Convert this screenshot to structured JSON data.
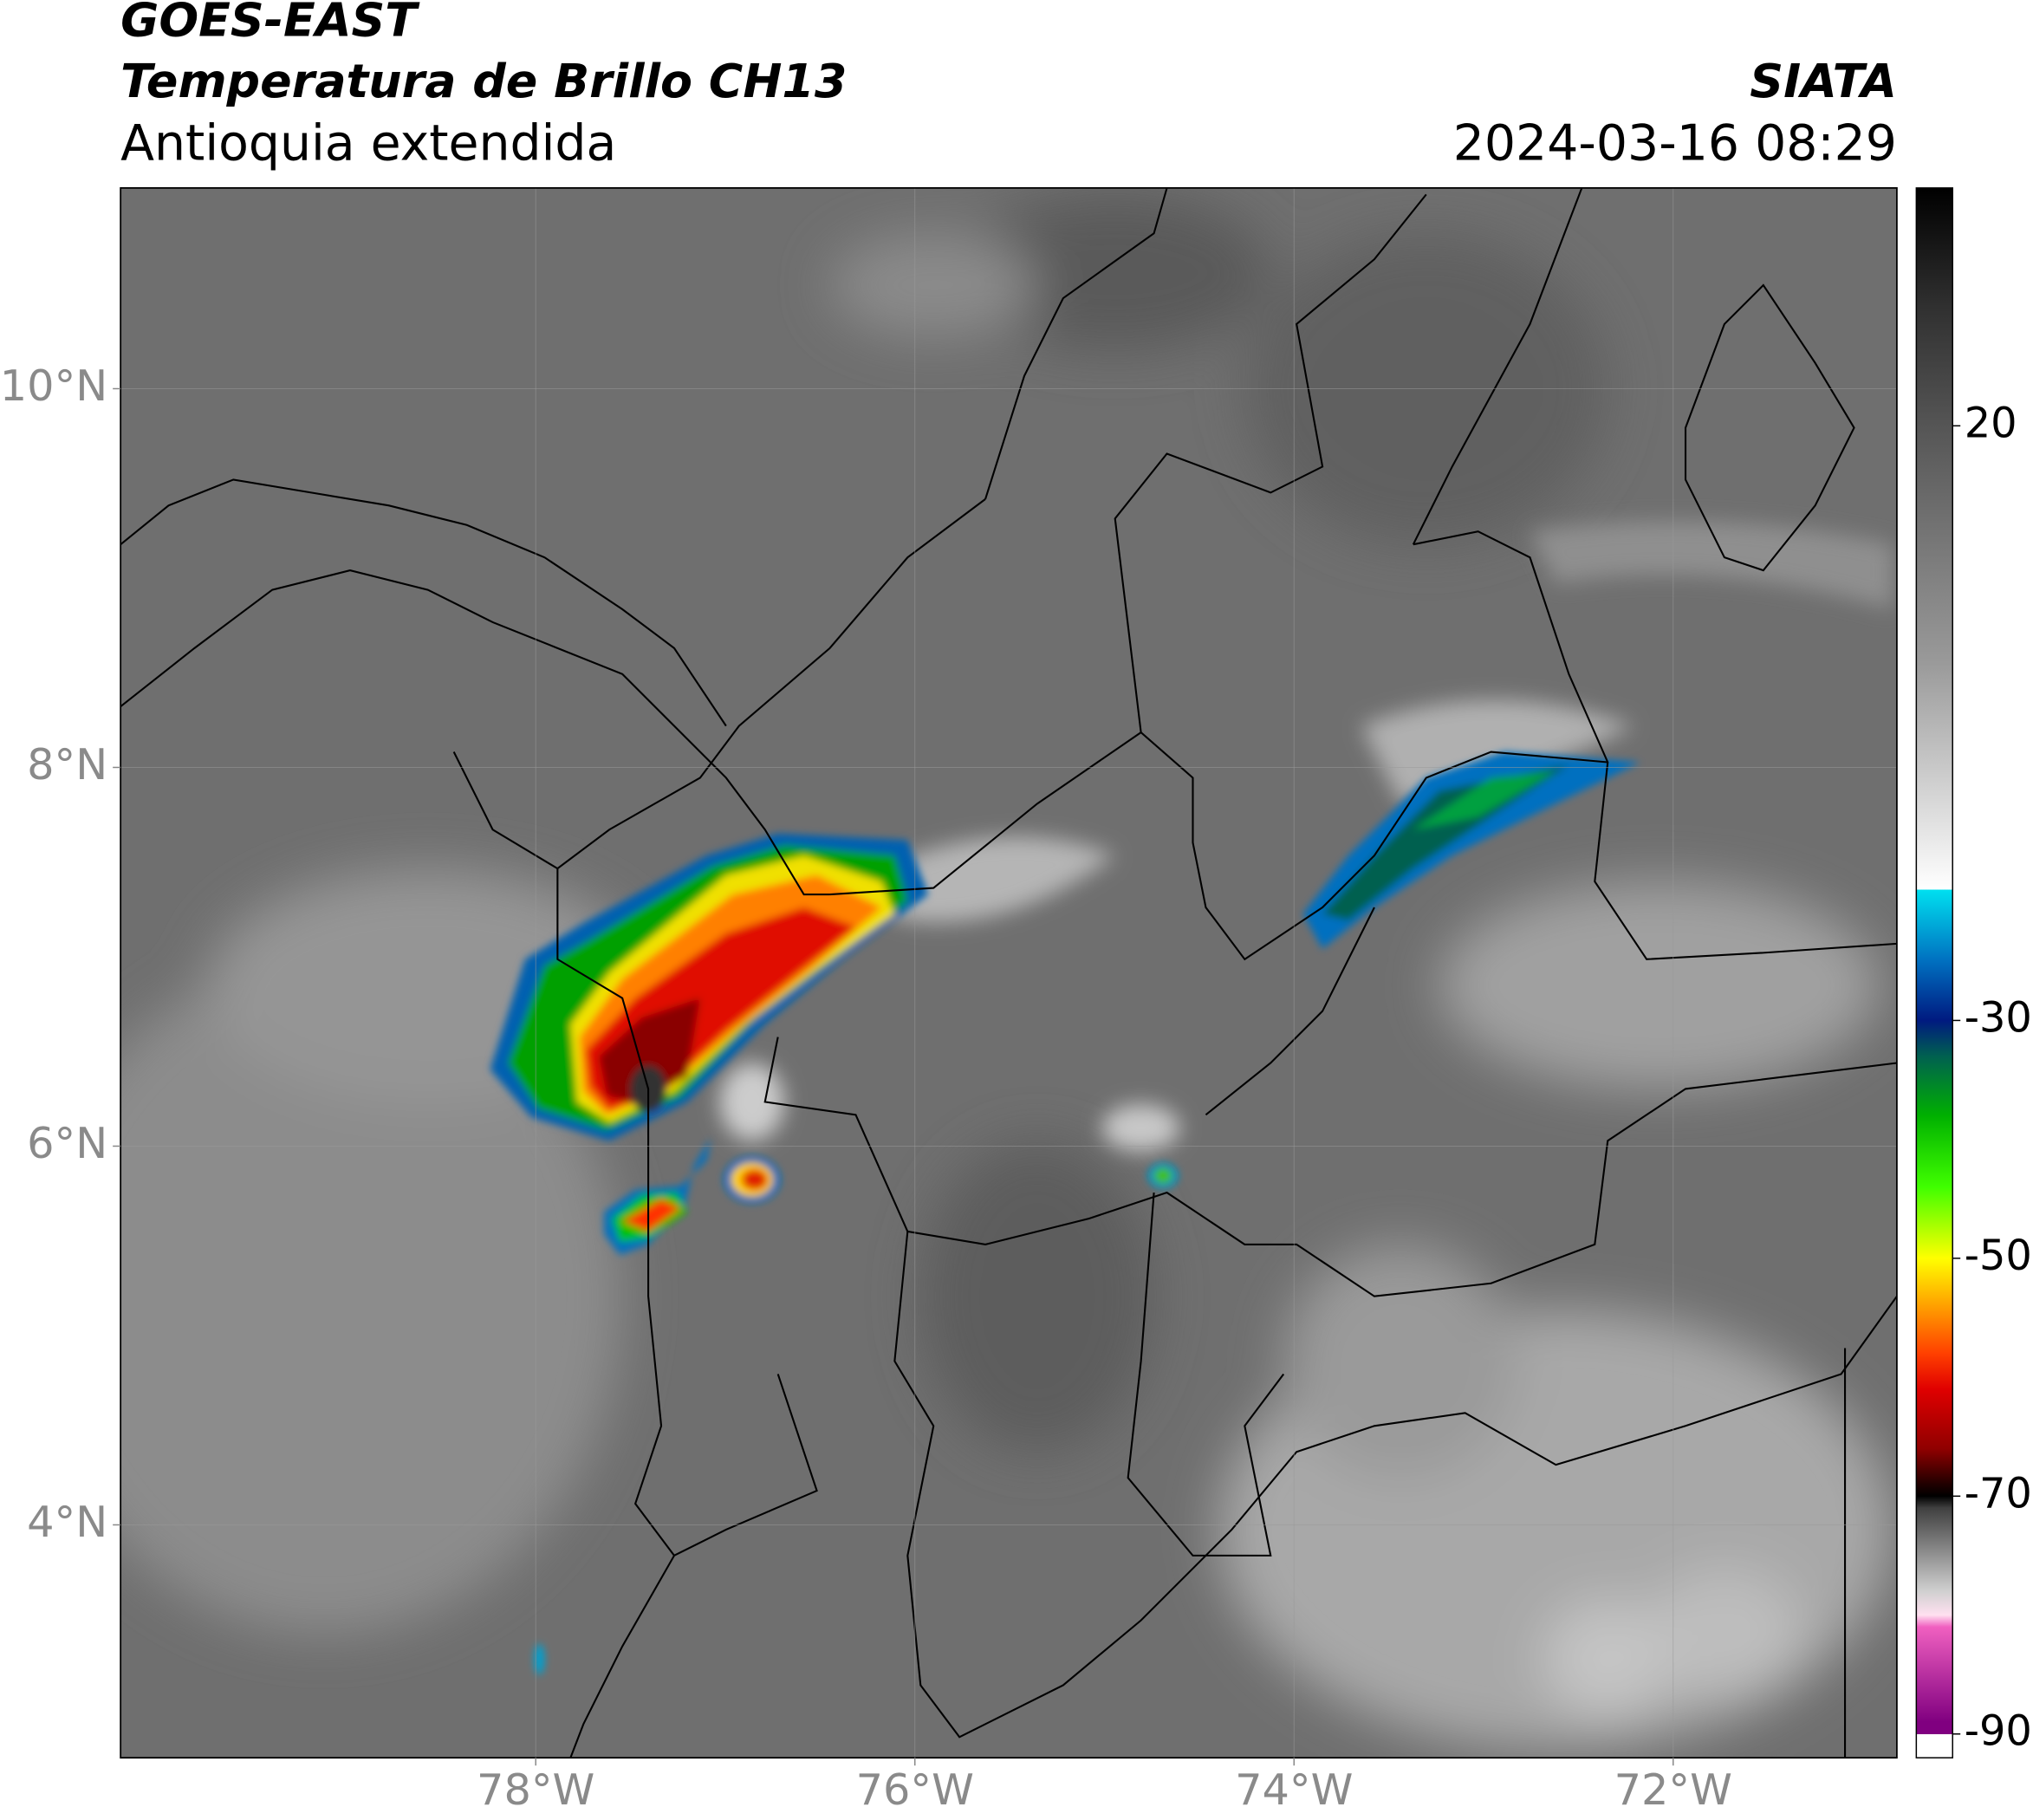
{
  "header": {
    "title": "GOES-EAST",
    "subtitle": "Temperatura de Brillo CH13",
    "region": "Antioquia extendida",
    "source": "SIATA",
    "datetime": "2024-03-16 08:29"
  },
  "map": {
    "xlim": [
      -80.19,
      -70.82
    ],
    "ylim": [
      2.77,
      11.06
    ],
    "xticks": [
      {
        "value": -78,
        "label": "78°W"
      },
      {
        "value": -76,
        "label": "76°W"
      },
      {
        "value": -74,
        "label": "74°W"
      },
      {
        "value": -72,
        "label": "72°W"
      }
    ],
    "yticks": [
      {
        "value": 4,
        "label": "4°N"
      },
      {
        "value": 6,
        "label": "6°N"
      },
      {
        "value": 8,
        "label": "8°N"
      },
      {
        "value": 10,
        "label": "10°N"
      }
    ],
    "grid": true
  },
  "colorbar": {
    "lim": [
      -92,
      40
    ],
    "ticks": [
      20,
      -30,
      -50,
      -70,
      -90
    ],
    "colormap": [
      {
        "value": 40,
        "color": "#000000"
      },
      {
        "value": 30,
        "color": "#303030"
      },
      {
        "value": 20,
        "color": "#555555"
      },
      {
        "value": 0,
        "color": "#9a9a9a"
      },
      {
        "value": -19,
        "color": "#ffffff"
      },
      {
        "value": -19,
        "color": "#00e0f0"
      },
      {
        "value": -25,
        "color": "#0070c0"
      },
      {
        "value": -30,
        "color": "#001a80"
      },
      {
        "value": -33,
        "color": "#006050"
      },
      {
        "value": -38,
        "color": "#00b000"
      },
      {
        "value": -44,
        "color": "#40ff00"
      },
      {
        "value": -50,
        "color": "#ffff00"
      },
      {
        "value": -54,
        "color": "#ffa000"
      },
      {
        "value": -58,
        "color": "#ff4000"
      },
      {
        "value": -61,
        "color": "#e00000"
      },
      {
        "value": -66,
        "color": "#900000"
      },
      {
        "value": -69,
        "color": "#200000"
      },
      {
        "value": -70,
        "color": "#000000"
      },
      {
        "value": -71,
        "color": "#404040"
      },
      {
        "value": -78,
        "color": "#d0d0d0"
      },
      {
        "value": -80,
        "color": "#ffe0f0"
      },
      {
        "value": -81,
        "color": "#f060c0"
      },
      {
        "value": -89,
        "color": "#800080"
      },
      {
        "value": -90,
        "color": "#800080"
      },
      {
        "value": -90,
        "color": "#ffffff"
      },
      {
        "value": -92,
        "color": "#ffffff"
      }
    ]
  }
}
